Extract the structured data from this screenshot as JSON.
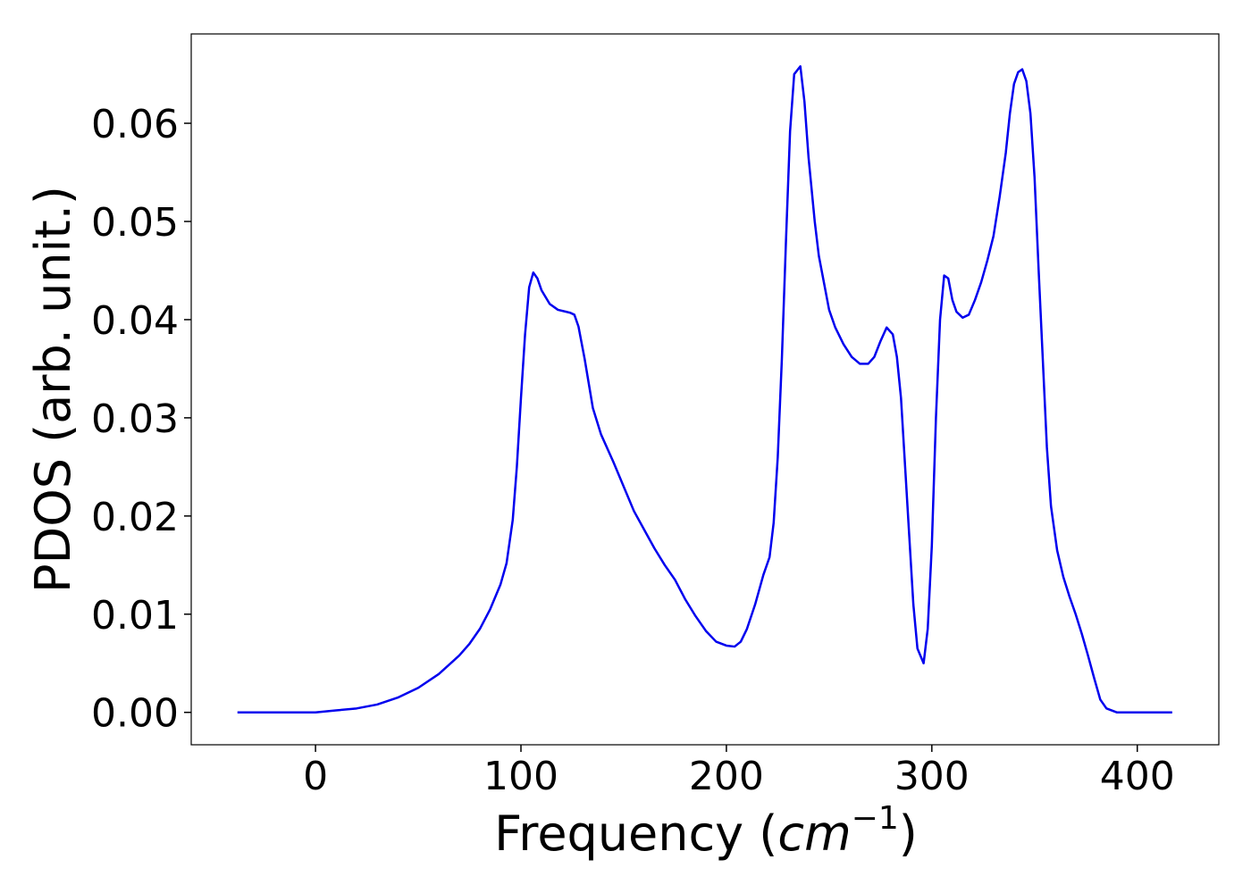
{
  "chart_data": {
    "type": "line",
    "x_label": [
      "Frequency (",
      "cm",
      "−1",
      ")"
    ],
    "y_label": "PDOS (arb. unit.)",
    "xlim": [
      -60.5,
      439.7
    ],
    "ylim": [
      -0.0033,
      0.0691
    ],
    "xticks": [
      0,
      100,
      200,
      300,
      400
    ],
    "yticks": [
      {
        "value": 0,
        "label": "0.00"
      },
      0.01,
      0.02,
      0.03,
      0.04,
      0.05,
      0.06
    ],
    "x": [
      -38,
      0,
      5,
      10,
      20,
      30,
      40,
      50,
      60,
      70,
      75,
      80,
      85,
      90,
      93,
      96,
      98,
      100,
      102,
      104,
      106,
      108,
      110,
      114,
      118,
      124,
      126,
      128,
      131,
      135,
      139,
      145,
      150,
      155,
      160,
      165,
      170,
      175,
      180,
      185,
      190,
      195,
      200,
      204,
      207,
      210,
      214,
      218,
      221,
      223,
      225,
      227,
      229,
      231,
      233,
      236,
      238,
      240,
      243,
      245,
      248,
      250,
      253,
      257,
      261,
      265,
      269,
      272,
      275,
      278,
      281,
      283,
      285,
      287,
      289,
      291,
      293,
      296,
      298,
      300,
      302,
      304,
      306,
      308,
      310,
      312,
      315,
      318,
      321,
      324,
      327,
      330,
      333,
      336,
      338,
      340,
      342,
      344,
      346,
      348,
      350,
      352,
      354,
      356,
      358,
      361,
      364,
      367,
      370,
      373,
      376,
      379,
      382,
      385,
      390,
      400,
      417
    ],
    "series": [
      {
        "color": "#0000ee",
        "values": [
          0,
          0,
          0.0001,
          0.0002,
          0.0004,
          0.0008,
          0.0015,
          0.0025,
          0.0039,
          0.0058,
          0.007,
          0.0085,
          0.0105,
          0.013,
          0.0152,
          0.0196,
          0.025,
          0.032,
          0.0385,
          0.0433,
          0.0448,
          0.0442,
          0.043,
          0.0416,
          0.041,
          0.0407,
          0.0405,
          0.0393,
          0.036,
          0.031,
          0.0283,
          0.0255,
          0.023,
          0.0205,
          0.0186,
          0.0167,
          0.015,
          0.0135,
          0.0115,
          0.0098,
          0.0083,
          0.0072,
          0.0068,
          0.0067,
          0.0072,
          0.0085,
          0.011,
          0.014,
          0.0158,
          0.0193,
          0.026,
          0.036,
          0.048,
          0.0592,
          0.065,
          0.0658,
          0.0622,
          0.0565,
          0.05,
          0.0465,
          0.0432,
          0.041,
          0.0392,
          0.0375,
          0.0362,
          0.0355,
          0.0355,
          0.0362,
          0.0378,
          0.0392,
          0.0385,
          0.0362,
          0.032,
          0.025,
          0.018,
          0.011,
          0.0065,
          0.005,
          0.0085,
          0.017,
          0.03,
          0.04,
          0.0445,
          0.0442,
          0.042,
          0.0408,
          0.0402,
          0.0405,
          0.042,
          0.0438,
          0.046,
          0.0485,
          0.0525,
          0.057,
          0.061,
          0.064,
          0.0652,
          0.0655,
          0.0643,
          0.061,
          0.0545,
          0.045,
          0.036,
          0.027,
          0.021,
          0.0165,
          0.0138,
          0.0118,
          0.01,
          0.008,
          0.0058,
          0.0035,
          0.0013,
          0.0004,
          0,
          0,
          0
        ]
      }
    ]
  }
}
